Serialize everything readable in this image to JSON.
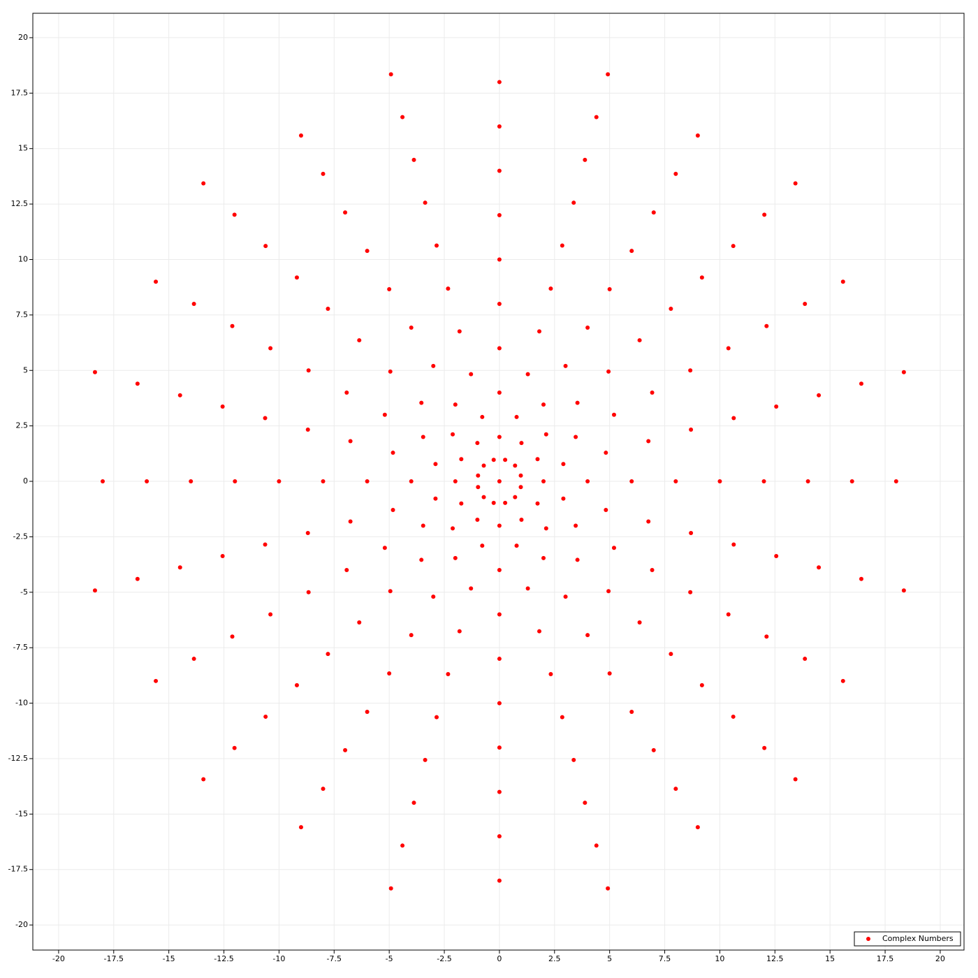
{
  "chart_data": {
    "type": "scatter",
    "xlim": [
      -21.17,
      21.08
    ],
    "ylim": [
      -21.13,
      21.1
    ],
    "xticks": [
      -20,
      -17.5,
      -15,
      -12.5,
      -10,
      -7.5,
      -5,
      -2.5,
      0,
      2.5,
      5,
      7.5,
      10,
      12.5,
      15,
      17.5,
      20
    ],
    "yticks": [
      -20,
      -17.5,
      -15,
      -12.5,
      -10,
      -7.5,
      -5,
      -2.5,
      0,
      2.5,
      5,
      7.5,
      10,
      12.5,
      15,
      17.5,
      20
    ],
    "grid": true,
    "legend": "lower right",
    "x": [
      0,
      0.97,
      0.71,
      0.26,
      -0.26,
      -0.71,
      -0.97,
      -0.97,
      -0.71,
      -0.26,
      0.26,
      0.71,
      0.97,
      2,
      1.73,
      1,
      0,
      -1,
      -1.73,
      -2,
      -1.73,
      -1,
      0,
      1,
      1.73,
      2.9,
      2.12,
      0.78,
      -0.78,
      -2.12,
      -2.9,
      -2.9,
      -2.12,
      -0.78,
      0.78,
      2.12,
      2.9,
      4,
      3.46,
      2,
      0,
      -2,
      -3.46,
      -4,
      -3.46,
      -2,
      0,
      2,
      3.46,
      4.83,
      3.54,
      1.29,
      -1.29,
      -3.54,
      -4.83,
      -4.83,
      -3.54,
      -1.29,
      1.29,
      3.54,
      4.83,
      6,
      5.2,
      3,
      0,
      -3,
      -5.2,
      -6,
      -5.2,
      -3,
      0,
      3,
      5.2,
      6.76,
      4.95,
      1.81,
      -1.81,
      -4.95,
      -6.76,
      -6.76,
      -4.95,
      -1.81,
      1.81,
      4.95,
      6.76,
      8,
      6.93,
      4,
      0,
      -4,
      -6.93,
      -8,
      -6.93,
      -4,
      0,
      4,
      6.93,
      8.69,
      6.36,
      2.33,
      -2.33,
      -6.36,
      -8.69,
      -8.69,
      -6.36,
      -2.33,
      2.33,
      6.36,
      8.69,
      10,
      8.66,
      5,
      0,
      -5,
      -8.66,
      -10,
      -8.66,
      -5,
      0,
      5,
      8.66,
      10.63,
      7.78,
      2.85,
      -2.85,
      -7.78,
      -10.63,
      -10.63,
      -7.78,
      -2.85,
      2.85,
      7.78,
      10.63,
      12,
      10.39,
      6,
      0,
      -6,
      -10.39,
      -12,
      -10.39,
      -6,
      0,
      6,
      10.39,
      12.56,
      9.19,
      3.37,
      -3.37,
      -9.19,
      -12.56,
      -12.56,
      -9.19,
      -3.37,
      3.37,
      9.19,
      12.56,
      14,
      12.12,
      7,
      0,
      -7,
      -12.12,
      -14,
      -12.12,
      -7,
      0,
      7,
      12.12,
      14.49,
      10.61,
      3.88,
      -3.88,
      -10.61,
      -14.49,
      -14.49,
      -10.61,
      -3.88,
      3.88,
      10.61,
      14.49,
      16,
      13.86,
      8,
      0,
      -8,
      -13.86,
      -16,
      -13.86,
      -8,
      0,
      8,
      13.86,
      16.42,
      12.02,
      4.4,
      -4.4,
      -12.02,
      -16.42,
      -16.42,
      -12.02,
      -4.4,
      4.4,
      12.02,
      16.42,
      18,
      15.59,
      9,
      0,
      -9,
      -15.59,
      -18,
      -15.59,
      -9,
      0,
      9,
      15.59,
      18.35,
      13.43,
      4.92,
      -4.92,
      -13.43,
      -18.35,
      -18.35,
      -13.43,
      -4.92,
      4.92,
      13.43,
      18.35
    ],
    "series": [
      {
        "name": "Complex Numbers",
        "color": "#ff0000",
        "values": [
          0,
          0.26,
          0.71,
          0.97,
          0.97,
          0.71,
          0.26,
          -0.26,
          -0.71,
          -0.97,
          -0.97,
          -0.71,
          -0.26,
          0,
          1,
          1.73,
          2,
          1.73,
          1,
          0,
          -1,
          -1.73,
          -2,
          -1.73,
          -1,
          0.78,
          2.12,
          2.9,
          2.9,
          2.12,
          0.78,
          -0.78,
          -2.12,
          -2.9,
          -2.9,
          -2.12,
          -0.78,
          0,
          2,
          3.46,
          4,
          3.46,
          2,
          0,
          -2,
          -3.46,
          -4,
          -3.46,
          -2,
          1.29,
          3.54,
          4.83,
          4.83,
          3.54,
          1.29,
          -1.29,
          -3.54,
          -4.83,
          -4.83,
          -3.54,
          -1.29,
          0,
          3,
          5.2,
          6,
          5.2,
          3,
          0,
          -3,
          -5.2,
          -6,
          -5.2,
          -3,
          1.81,
          4.95,
          6.76,
          6.76,
          4.95,
          1.81,
          -1.81,
          -4.95,
          -6.76,
          -6.76,
          -4.95,
          -1.81,
          0,
          4,
          6.93,
          8,
          6.93,
          4,
          0,
          -4,
          -6.93,
          -8,
          -6.93,
          -4,
          2.33,
          6.36,
          8.69,
          8.69,
          6.36,
          2.33,
          -2.33,
          -6.36,
          -8.69,
          -8.69,
          -6.36,
          -2.33,
          0,
          5,
          8.66,
          10,
          8.66,
          5,
          0,
          -5,
          -8.66,
          -10,
          -8.66,
          -5,
          2.85,
          7.78,
          10.63,
          10.63,
          7.78,
          2.85,
          -2.85,
          -7.78,
          -10.63,
          -10.63,
          -7.78,
          -2.85,
          0,
          6,
          10.39,
          12,
          10.39,
          6,
          0,
          -6,
          -10.39,
          -12,
          -10.39,
          -6,
          3.37,
          9.19,
          12.56,
          12.56,
          9.19,
          3.37,
          -3.37,
          -9.19,
          -12.56,
          -12.56,
          -9.19,
          -3.37,
          0,
          7,
          12.12,
          14,
          12.12,
          7,
          0,
          -7,
          -12.12,
          -14,
          -12.12,
          -7,
          3.88,
          10.61,
          14.49,
          14.49,
          10.61,
          3.88,
          -3.88,
          -10.61,
          -14.49,
          -14.49,
          -10.61,
          -3.88,
          0,
          8,
          13.86,
          16,
          13.86,
          8,
          0,
          -8,
          -13.86,
          -16,
          -13.86,
          -8,
          4.4,
          12.02,
          16.42,
          16.42,
          12.02,
          4.4,
          -4.4,
          -12.02,
          -16.42,
          -16.42,
          -12.02,
          -4.4,
          0,
          9,
          15.59,
          18,
          15.59,
          9,
          0,
          -9,
          -15.59,
          -18,
          -15.59,
          -9,
          4.92,
          13.43,
          18.35,
          18.35,
          13.43,
          4.92,
          -4.92,
          -13.43,
          -18.35,
          -18.35,
          -13.43,
          -4.92
        ]
      }
    ]
  }
}
